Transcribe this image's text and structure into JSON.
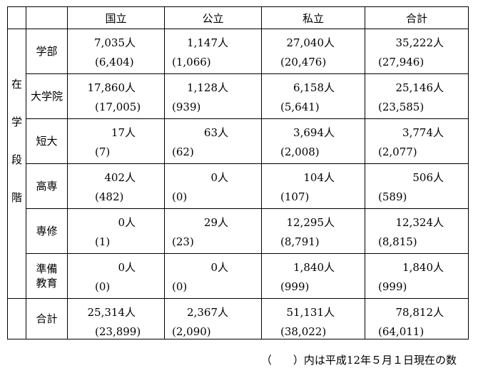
{
  "table": {
    "side_label": [
      "在",
      "学",
      "段",
      "階"
    ],
    "columns": [
      "国立",
      "公立",
      "私立",
      "合計"
    ],
    "rows": [
      {
        "label_lines": [
          "学部"
        ],
        "values": [
          [
            "7,035人",
            "(6,404)"
          ],
          [
            "1,147人",
            "(1,066)"
          ],
          [
            "27,040人",
            "(20,476)"
          ],
          [
            "35,222人",
            "(27,946)"
          ]
        ]
      },
      {
        "label_lines": [
          "大学院"
        ],
        "values": [
          [
            "17,860人",
            "(17,005)"
          ],
          [
            "1,128人",
            "(939)"
          ],
          [
            "6,158人",
            "(5,641)"
          ],
          [
            "25,146人",
            "(23,585)"
          ]
        ]
      },
      {
        "label_lines": [
          "短大"
        ],
        "values": [
          [
            "17人",
            "(7)"
          ],
          [
            "63人",
            "(62)"
          ],
          [
            "3,694人",
            "(2,008)"
          ],
          [
            "3,774人",
            "(2,077)"
          ]
        ]
      },
      {
        "label_lines": [
          "高専"
        ],
        "values": [
          [
            "402人",
            "(482)"
          ],
          [
            "0人",
            "(0)"
          ],
          [
            "104人",
            "(107)"
          ],
          [
            "506人",
            "(589)"
          ]
        ]
      },
      {
        "label_lines": [
          "専修"
        ],
        "values": [
          [
            "0人",
            "(1)"
          ],
          [
            "29人",
            "(23)"
          ],
          [
            "12,295人",
            "(8,791)"
          ],
          [
            "12,324人",
            "(8,815)"
          ]
        ]
      },
      {
        "label_lines": [
          "準備",
          "教育"
        ],
        "values": [
          [
            "0人",
            "(0)"
          ],
          [
            "0人",
            "(0)"
          ],
          [
            "1,840人",
            "(999)"
          ],
          [
            "1,840人",
            "(999)"
          ]
        ]
      }
    ],
    "total_row": {
      "label_lines": [
        "合計"
      ],
      "values": [
        [
          "25,314人",
          "(23,899)"
        ],
        [
          "2,367人",
          "(2,090)"
        ],
        [
          "51,131人",
          "(38,022)"
        ],
        [
          "78,812人",
          "(64,011)"
        ]
      ]
    }
  },
  "footnote": "（　　）内は平成12年５月１日現在の数"
}
